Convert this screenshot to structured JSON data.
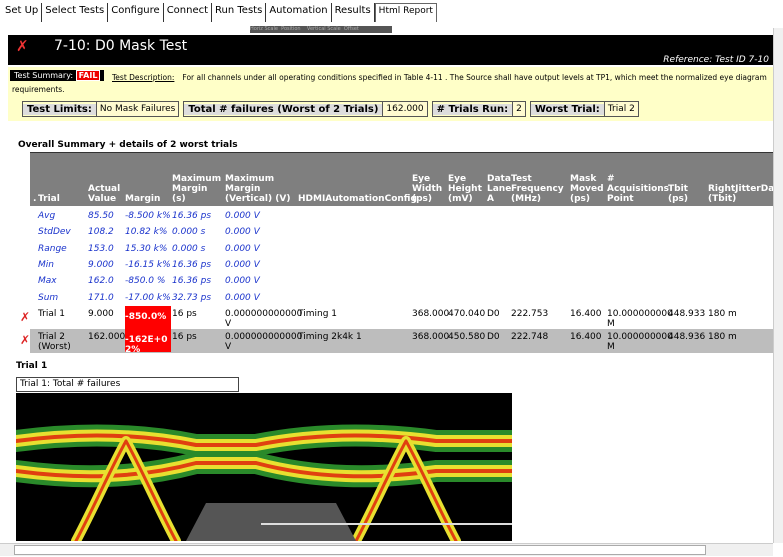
{
  "tabs": [
    "Set Up",
    "Select Tests",
    "Configure",
    "Connect",
    "Run Tests",
    "Automation",
    "Results",
    "Html Report"
  ],
  "toolbar_text": "Horiz Scale  Position    Vertical Scale  Offset",
  "header": {
    "title": "7-10: D0 Mask Test",
    "reference": "Reference: Test ID 7-10"
  },
  "summary": {
    "label": "Test Summary:",
    "status": "FAIL",
    "description_label": "Test Description:",
    "description": "For all channels under all operating conditions specified in Table 4-11 . The Source shall have output levels at TP1, which meet the normalized eye diagram requirements."
  },
  "limits": [
    {
      "label": "Test Limits:",
      "value": "No Mask Failures"
    },
    {
      "label": "Total # failures (Worst of 2 Trials)",
      "value": "162.000"
    },
    {
      "label": "# Trials Run:",
      "value": "2"
    },
    {
      "label": "Worst Trial:",
      "value": "Trial 2"
    }
  ],
  "section_title": "Overall Summary + details of 2 worst trials",
  "table": {
    "corner": ".",
    "columns": [
      "Trial",
      "Actual Value",
      "Margin",
      "Maximum Margin (s)",
      "Maximum Margin (Vertical) (V)",
      "HDMIAutomationConfig",
      "Eye Width (ps)",
      "Eye Height (mV)",
      "Data Lane A",
      "Test Frequency (MHz)",
      "Mask Moved (ps)",
      "# Acquisitions Point",
      "Tbit (ps)",
      "RightJitterData (Tbit)"
    ],
    "stats": [
      [
        "Avg",
        "85.50",
        "-8.500 k%",
        "16.36 ps",
        "0.000 V"
      ],
      [
        "StdDev",
        "108.2",
        "10.82 k%",
        "0.000 s",
        "0.000 V"
      ],
      [
        "Range",
        "153.0",
        "15.30 k%",
        "0.000 s",
        "0.000 V"
      ],
      [
        "Min",
        "9.000",
        "-16.15 k%",
        "16.36 ps",
        "0.000 V"
      ],
      [
        "Max",
        "162.0",
        "-850.0 %",
        "16.36 ps",
        "0.000 V"
      ],
      [
        "Sum",
        "171.0",
        "-17.00 k%",
        "32.73 ps",
        "0.000 V"
      ]
    ],
    "trials": [
      [
        "Trial 1",
        "9.000",
        "-850.0%",
        "16 ps",
        "0.000000000000 V",
        "Timing 1",
        "368.000",
        "470.040",
        "D0",
        "222.753",
        "16.400",
        "10.000000000 M",
        "448.933",
        "180 m"
      ],
      [
        "Trial 2 (Worst)",
        "162.000",
        "-162E+02%",
        "16 ps",
        "0.000000000000 V",
        "Timing 2k4k 1",
        "368.000",
        "450.580",
        "D0",
        "222.748",
        "16.400",
        "10.000000000 M",
        "448.936",
        "180 m"
      ]
    ]
  },
  "trial_section": {
    "title": "Trial 1",
    "caption": "Trial 1: Total # failures"
  }
}
